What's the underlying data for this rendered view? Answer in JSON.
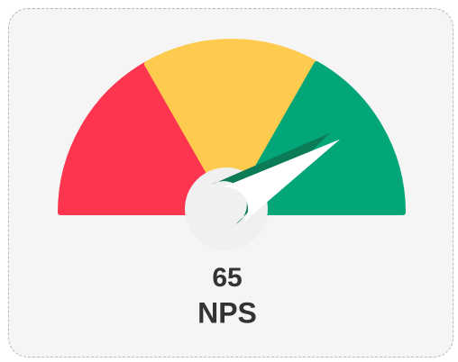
{
  "chart_data": {
    "type": "gauge",
    "value": 65,
    "label": "NPS",
    "min": -100,
    "max": 100,
    "bands": [
      {
        "from": -100,
        "to": -33,
        "color": "#fe354e"
      },
      {
        "from": -33,
        "to": 33,
        "color": "#fecb4f"
      },
      {
        "from": 33,
        "to": 100,
        "color": "#03a678"
      }
    ]
  }
}
